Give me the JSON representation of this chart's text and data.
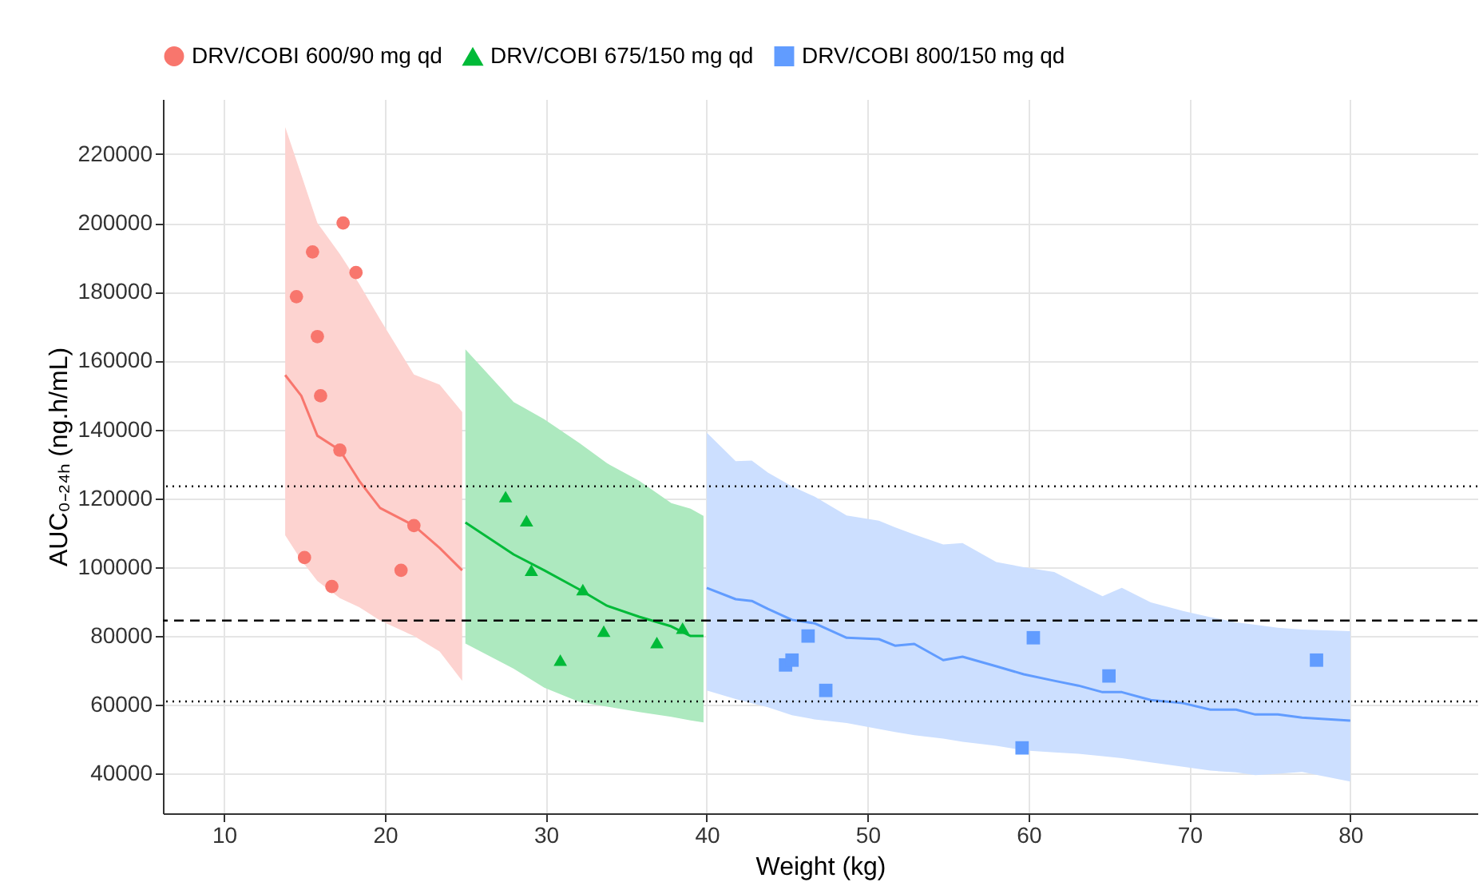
{
  "chart_data": {
    "type": "line",
    "xlabel": "Weight (kg)",
    "ylabel": "AUC₀₋₂₄ₕ (ng.h/mL)",
    "xlim": [
      6.2,
      87.9
    ],
    "ylim": [
      28500,
      236000
    ],
    "xticks": [
      10,
      20,
      30,
      40,
      50,
      60,
      70,
      80
    ],
    "yticks": [
      40000,
      60000,
      80000,
      100000,
      120000,
      140000,
      160000,
      180000,
      200000,
      220000
    ],
    "grid": true,
    "legend": "top",
    "series": [
      {
        "name": "DRV/COBI 600/90 mg qd",
        "color": "#f8766d",
        "x": [
          13.8,
          14.8,
          15.8,
          17.2,
          18.4,
          19.7,
          21.8,
          23.4,
          24.8
        ],
        "values": [
          155800,
          149800,
          138200,
          134000,
          125100,
          117200,
          112100,
          105600,
          99100
        ],
        "lower": [
          109300,
          102000,
          96000,
          91000,
          88400,
          84500,
          80000,
          75500,
          67000
        ],
        "upper": [
          227900,
          214000,
          200000,
          191000,
          182300,
          172000,
          156000,
          153000,
          145100
        ]
      },
      {
        "name": "DRV/COBI 675/150 mg qd",
        "color": "#00ba38",
        "x": [
          25.0,
          28.0,
          29.9,
          32.1,
          33.8,
          35.8,
          37.8,
          39.0,
          39.8
        ],
        "values": [
          113000,
          103700,
          99100,
          93500,
          88800,
          85600,
          82800,
          80000,
          80000
        ],
        "lower": [
          77800,
          70500,
          65000,
          60800,
          59500,
          57900,
          56500,
          55500,
          54900
        ],
        "upper": [
          163300,
          148000,
          143000,
          136000,
          130200,
          125100,
          118600,
          117000,
          114900
        ]
      },
      {
        "name": "DRV/COBI 800/150 mg qd",
        "color": "#619cff",
        "x": [
          40.0,
          41.8,
          42.8,
          43.8,
          45.3,
          46.7,
          48.7,
          50.7,
          51.7,
          52.9,
          54.7,
          55.9,
          58.0,
          59.7,
          61.6,
          63.1,
          64.6,
          65.8,
          67.6,
          69.6,
          71.3,
          72.9,
          74.1,
          75.5,
          77.0,
          80.0
        ],
        "values": [
          94000,
          90700,
          90200,
          87900,
          84700,
          83700,
          79500,
          79100,
          77200,
          77700,
          73000,
          74000,
          71200,
          68900,
          67000,
          65600,
          63700,
          63700,
          61400,
          60500,
          58600,
          58600,
          57200,
          57200,
          56300,
          55400
        ],
        "lower": [
          64200,
          61700,
          60500,
          59300,
          57000,
          55800,
          54700,
          53000,
          52100,
          51200,
          50200,
          49300,
          48100,
          46800,
          46200,
          45800,
          45100,
          44500,
          43300,
          42000,
          40900,
          40400,
          39600,
          40000,
          40500,
          37700
        ],
        "upper": [
          139100,
          130800,
          131000,
          127500,
          123500,
          120500,
          115000,
          113500,
          111600,
          109500,
          106600,
          107000,
          101500,
          100000,
          98600,
          95000,
          91600,
          94000,
          89800,
          87300,
          85500,
          84000,
          83300,
          82400,
          81900,
          81400
        ]
      },
      {
        "type": "scatter",
        "marker": "circle",
        "color": "#f8766d",
        "x": [
          14.5,
          15.5,
          17.4,
          18.2,
          15.8,
          16.0,
          17.2,
          21.8,
          21.0,
          15.0,
          16.7
        ],
        "values": [
          178600,
          191600,
          200000,
          185600,
          167000,
          149800,
          134000,
          112100,
          99100,
          102800,
          94400
        ]
      },
      {
        "type": "scatter",
        "marker": "triangle",
        "color": "#00ba38",
        "x": [
          27.5,
          28.8,
          29.1,
          32.3,
          33.6,
          30.9,
          36.9,
          38.5
        ],
        "values": [
          120500,
          113500,
          99100,
          93500,
          81400,
          73000,
          78100,
          82300
        ]
      },
      {
        "type": "scatter",
        "marker": "square",
        "color": "#619cff",
        "x": [
          44.9,
          45.3,
          46.3,
          47.4,
          59.6,
          60.3,
          65.0,
          77.9
        ],
        "values": [
          71600,
          73000,
          80000,
          64200,
          47500,
          79500,
          68400,
          73000
        ]
      }
    ],
    "ref_lines": [
      {
        "axis": "y",
        "value": 123500,
        "line_style": "dotted",
        "color": "#000000"
      },
      {
        "axis": "y",
        "value": 84500,
        "line_style": "dashed",
        "color": "#000000"
      },
      {
        "axis": "y",
        "value": 61000,
        "line_style": "dotted",
        "color": "#000000"
      }
    ]
  }
}
